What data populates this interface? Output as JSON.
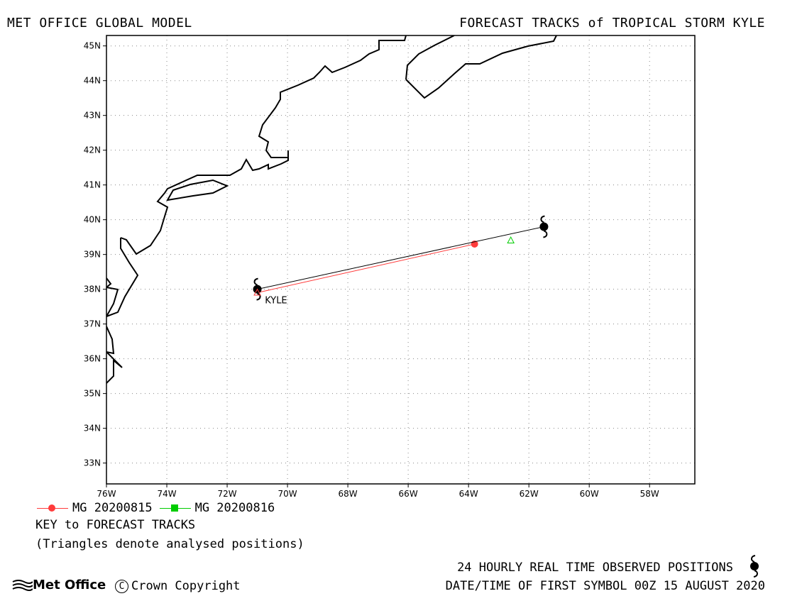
{
  "header": {
    "left_title": "MET OFFICE GLOBAL MODEL",
    "right_title": "FORECAST TRACKS of TROPICAL STORM KYLE"
  },
  "map": {
    "lon_range": [
      -76,
      -56.5
    ],
    "lat_range": [
      32.4,
      45.3
    ],
    "grid": true,
    "lon_ticks": [
      {
        "value": -76,
        "label": "76W"
      },
      {
        "value": -74,
        "label": "74W"
      },
      {
        "value": -72,
        "label": "72W"
      },
      {
        "value": -70,
        "label": "70W"
      },
      {
        "value": -68,
        "label": "68W"
      },
      {
        "value": -66,
        "label": "66W"
      },
      {
        "value": -64,
        "label": "64W"
      },
      {
        "value": -62,
        "label": "62W"
      },
      {
        "value": -60,
        "label": "60W"
      },
      {
        "value": -58,
        "label": "58W"
      }
    ],
    "lat_ticks": [
      {
        "value": 33,
        "label": "33N"
      },
      {
        "value": 34,
        "label": "34N"
      },
      {
        "value": 35,
        "label": "35N"
      },
      {
        "value": 36,
        "label": "36N"
      },
      {
        "value": 37,
        "label": "37N"
      },
      {
        "value": 38,
        "label": "38N"
      },
      {
        "value": 39,
        "label": "39N"
      },
      {
        "value": 40,
        "label": "40N"
      },
      {
        "value": 41,
        "label": "41N"
      },
      {
        "value": 42,
        "label": "42N"
      },
      {
        "value": 43,
        "label": "43N"
      },
      {
        "value": 44,
        "label": "44N"
      },
      {
        "value": 45,
        "label": "45N"
      }
    ],
    "storm_label": {
      "text": "KYLE",
      "lon": -70.75,
      "lat": 37.7
    },
    "observed_track": {
      "color": "#000000",
      "points": [
        {
          "lon": -71.0,
          "lat": 38.0
        },
        {
          "lon": -61.5,
          "lat": 39.8
        }
      ]
    },
    "forecast_tracks": [
      {
        "name": "MG 20200815",
        "color": "#ff3b3b",
        "points": [
          {
            "lon": -71.0,
            "lat": 37.9
          },
          {
            "lon": -63.8,
            "lat": 39.3
          }
        ]
      },
      {
        "name": "MG 20200816",
        "color": "#00cc00",
        "points": []
      }
    ],
    "analysed_positions": [
      {
        "lon": -71.0,
        "lat": 37.9,
        "color": "#ff3b3b"
      },
      {
        "lon": -62.6,
        "lat": 39.4,
        "color": "#00cc00"
      }
    ],
    "coast_color": "#000000"
  },
  "legend": {
    "items": [
      {
        "label": "MG 20200815",
        "color": "#ff3b3b",
        "marker": "circle"
      },
      {
        "label": "MG 20200816",
        "color": "#00cc00",
        "marker": "square"
      }
    ]
  },
  "key": {
    "title": "KEY to FORECAST TRACKS",
    "note": "(Triangles denote analysed positions)"
  },
  "footer": {
    "observed": "24 HOURLY REAL TIME OBSERVED POSITIONS",
    "datetime": "DATE/TIME OF FIRST SYMBOL 00Z 15 AUGUST 2020",
    "logo": "Met Office",
    "copyright": "Crown Copyright"
  }
}
